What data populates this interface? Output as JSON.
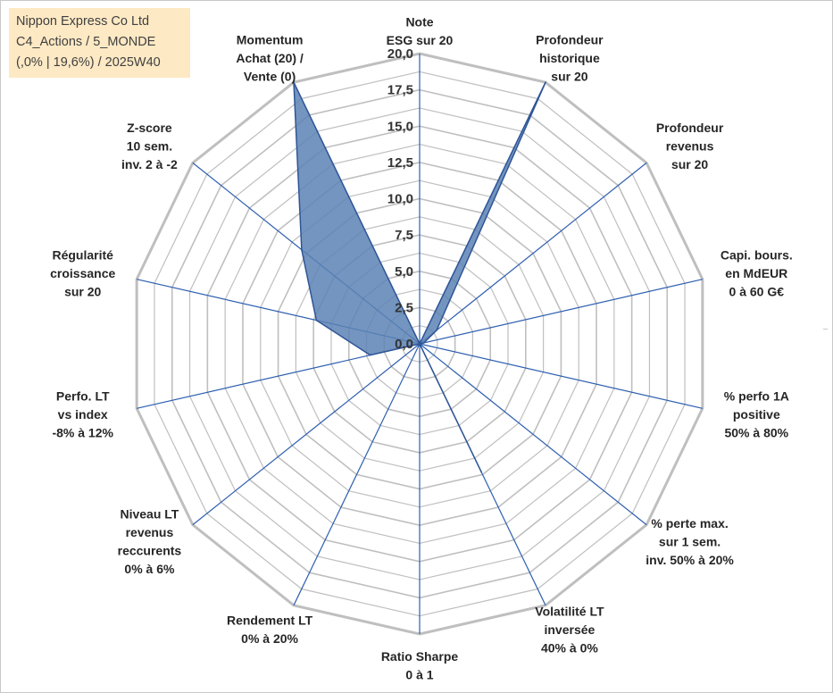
{
  "info_box": {
    "line1": "Nippon Express Co Ltd",
    "line2": "C4_Actions / 5_MONDE",
    "line3": "(,0% | 19,6%) / 2025W40"
  },
  "colors": {
    "fill": "#5b82b4",
    "stroke": "#2f5597",
    "spoke": "#2e5fb0",
    "grid": "#bfbfbf",
    "info_bg": "#fde9c4"
  },
  "chart_data": {
    "type": "radar",
    "title": "",
    "rlim": [
      0,
      20
    ],
    "ticks": [
      "0,0",
      "2,5",
      "5,0",
      "7,5",
      "10,0",
      "12,5",
      "15,0",
      "17,5",
      "20,0"
    ],
    "tick_values": [
      0,
      2.5,
      5,
      7.5,
      10,
      12.5,
      15,
      17.5,
      20
    ],
    "grid": true,
    "axes": [
      {
        "label": [
          "Note",
          "ESG sur 20"
        ],
        "value": 0
      },
      {
        "label": [
          "Profondeur",
          "historique",
          "sur 20"
        ],
        "value": 20
      },
      {
        "label": [
          "Profondeur",
          "revenus",
          "sur 20"
        ],
        "value": 1.5
      },
      {
        "label": [
          "Capi. bours.",
          "en MdEUR",
          "0 à 60 G€"
        ],
        "value": 0.3
      },
      {
        "label": [
          "% perfo 1A",
          "positive",
          "50% à 80%"
        ],
        "value": 0
      },
      {
        "label": [
          "% perte max.",
          "sur 1 sem.",
          "inv. 50% à 20%"
        ],
        "value": 0
      },
      {
        "label": [
          "Volatilité LT",
          "inversée",
          "40% à 0%"
        ],
        "value": 9.8
      },
      {
        "label": [
          "Ratio Sharpe",
          "0 à 1"
        ],
        "value": 0
      },
      {
        "label": [
          "Rendement LT",
          "0% à 20%"
        ],
        "value": 0
      },
      {
        "label": [
          "Niveau LT",
          "revenus",
          "reccurents",
          "0% à 6%"
        ],
        "value": 0
      },
      {
        "label": [
          "Perfo. LT",
          "vs index",
          "-8% à 12%"
        ],
        "value": 3.5
      },
      {
        "label": [
          "Régularité",
          "croissance",
          "sur 20"
        ],
        "value": 7.3
      },
      {
        "label": [
          "Z-score",
          "10 sem.",
          "inv. 2 à -2"
        ],
        "value": 10.4
      },
      {
        "label": [
          "Momentum",
          "Achat (20) /",
          "Vente (0)"
        ],
        "value": 20
      }
    ]
  }
}
